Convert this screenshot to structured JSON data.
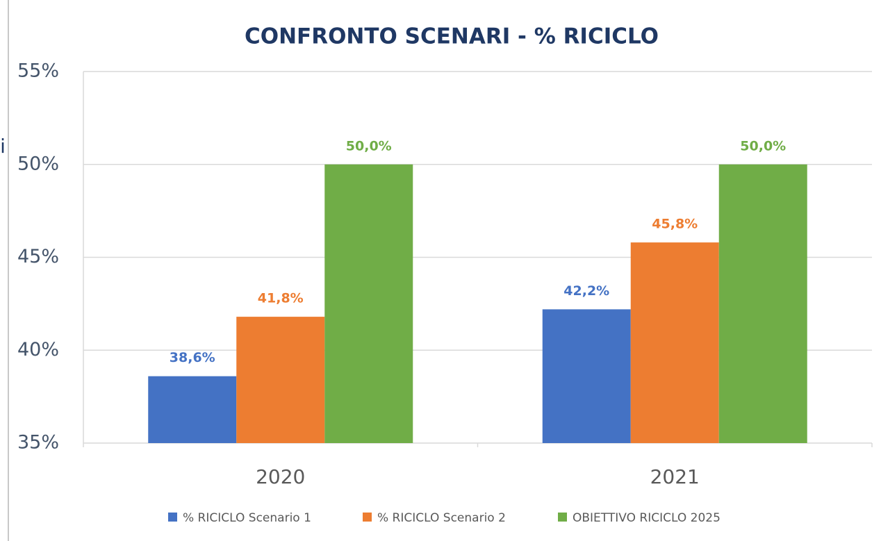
{
  "chart_data": {
    "type": "bar",
    "title": "CONFRONTO SCENARI - % RICICLO",
    "annotations": [
      "i"
    ],
    "categories": [
      "2020",
      "2021"
    ],
    "series": [
      {
        "name": "% RICICLO Scenario 1",
        "color": "#4472c4",
        "values": [
          38.6,
          42.2
        ],
        "value_labels": [
          "38,6%",
          "42,2%"
        ]
      },
      {
        "name": "% RICICLO Scenario 2",
        "color": "#ed7d31",
        "values": [
          41.8,
          45.8
        ],
        "value_labels": [
          "41,8%",
          "45,8%"
        ]
      },
      {
        "name": "OBIETTIVO RICICLO 2025",
        "color": "#70ad47",
        "values": [
          50.0,
          50.0
        ],
        "value_labels": [
          "50,0%",
          "50,0%"
        ]
      }
    ],
    "ylim": [
      35,
      55
    ],
    "yticks": [
      {
        "value": 35,
        "label": "35%"
      },
      {
        "value": 40,
        "label": "40%"
      },
      {
        "value": 45,
        "label": "45%"
      },
      {
        "value": 50,
        "label": "50%"
      },
      {
        "value": 55,
        "label": "55%"
      }
    ],
    "grid": true,
    "legend": "bottom"
  }
}
